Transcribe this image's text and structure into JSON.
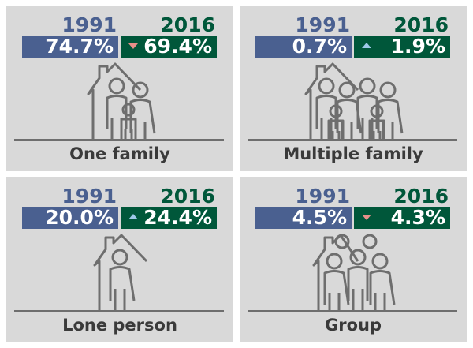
{
  "colors": {
    "year1991": "#4a6090",
    "year2016": "#00573a",
    "down_arrow": "#e8908a",
    "up_arrow": "#9ec9e8",
    "panel_bg": "#d9d9d9"
  },
  "panels": [
    {
      "label": "One family",
      "year_a": "1991",
      "year_b": "2016",
      "value_a": "74.7%",
      "value_b": "69.4%",
      "trend": "down",
      "icon": "house-family-icon"
    },
    {
      "label": "Multiple family",
      "year_a": "1991",
      "year_b": "2016",
      "value_a": "0.7%",
      "value_b": "1.9%",
      "trend": "up",
      "icon": "house-multiple-families-icon"
    },
    {
      "label": "Lone person",
      "year_a": "1991",
      "year_b": "2016",
      "value_a": "20.0%",
      "value_b": "24.4%",
      "trend": "up",
      "icon": "house-person-icon"
    },
    {
      "label": "Group",
      "year_a": "1991",
      "year_b": "2016",
      "value_a": "4.5%",
      "value_b": "4.3%",
      "trend": "down",
      "icon": "house-group-icon"
    }
  ]
}
